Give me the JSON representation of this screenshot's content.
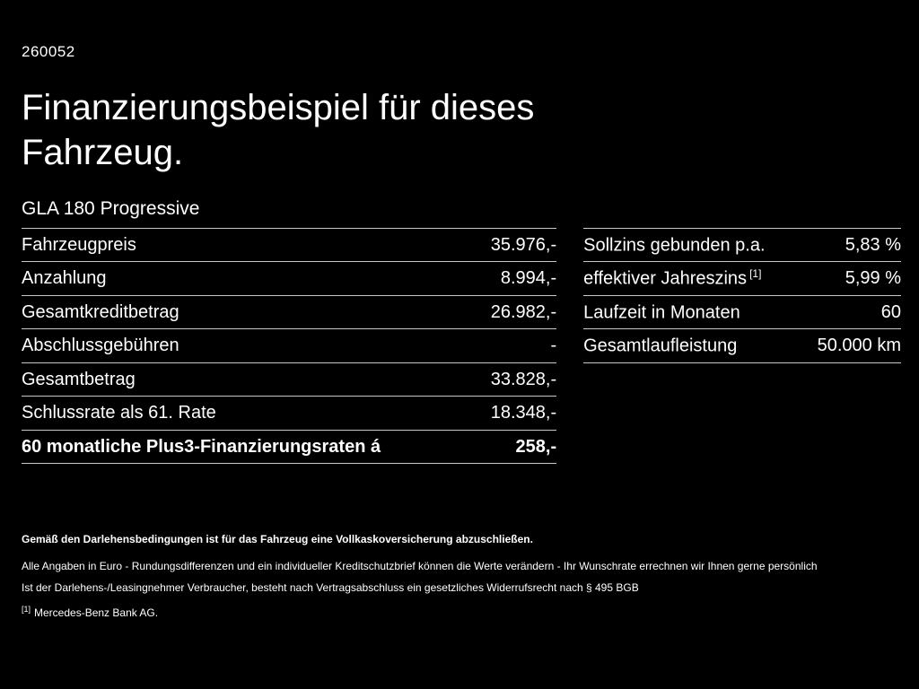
{
  "page": {
    "id": "260052",
    "title": "Finanzierungsbeispiel für dieses Fahrzeug.",
    "vehicle_model": "GLA 180 Progressive"
  },
  "colors": {
    "background": "#000000",
    "text": "#ffffff",
    "divider": "#c9c9c9"
  },
  "left_table": {
    "rows": [
      {
        "label": "Fahrzeugpreis",
        "value": "35.976,-"
      },
      {
        "label": "Anzahlung",
        "value": "8.994,-"
      },
      {
        "label": "Gesamtkreditbetrag",
        "value": "26.982,-"
      },
      {
        "label": "Abschlussgebühren",
        "value": "-"
      },
      {
        "label": "Gesamtbetrag",
        "value": "33.828,-"
      },
      {
        "label": "Schlussrate als 61. Rate",
        "value": "18.348,-"
      },
      {
        "label": "60 monatliche Plus3-Finanzierungsraten á",
        "value": "258,-"
      }
    ]
  },
  "right_table": {
    "rows": [
      {
        "label": "Sollzins gebunden p.a.",
        "sup": "",
        "value": "5,83 %"
      },
      {
        "label": "effektiver Jahreszins",
        "sup": "[1]",
        "value": "5,99 %"
      },
      {
        "label": "Laufzeit in Monaten",
        "sup": "",
        "value": "60"
      },
      {
        "label": "Gesamtlaufleistung",
        "sup": "",
        "value": "50.000 km"
      }
    ]
  },
  "footer": {
    "insurance_note": "Gemäß den Darlehensbedingungen ist für das Fahrzeug eine Vollkaskoversicherung abzuschließen.",
    "disclaimer": "Alle Angaben in Euro - Rundungsdifferenzen und ein individueller Kreditschutzbrief können die Werte verändern - Ihr Wunschrate errechnen wir Ihnen gerne persönlich",
    "legal": "Ist der Darlehens-/Leasingnehmer Verbraucher, besteht nach Vertragsabschluss ein gesetzliches Widerrufsrecht nach § 495 BGB",
    "bank_ref_mark": "[1]",
    "bank_note": "Mercedes-Benz Bank AG."
  }
}
